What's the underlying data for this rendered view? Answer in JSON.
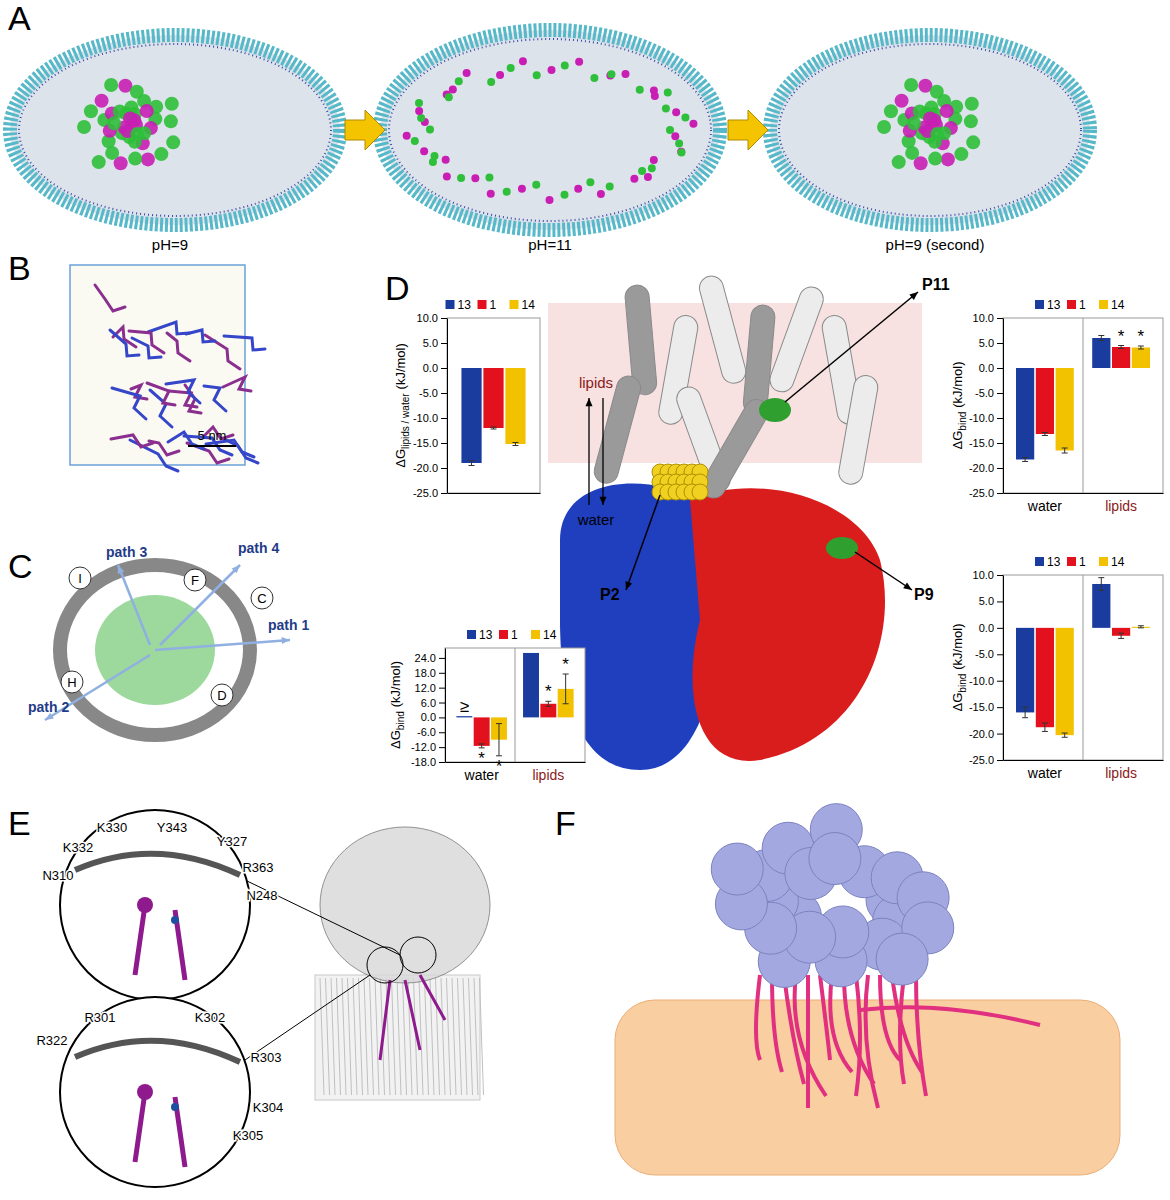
{
  "panel_labels": [
    "A",
    "B",
    "C",
    "D",
    "E",
    "F"
  ],
  "panel_a": {
    "captions": [
      "pH=9",
      "pH=11",
      "pH=9 (second)"
    ]
  },
  "panel_b": {
    "scale_bar": "5 nm"
  },
  "panel_c": {
    "paths": [
      "path 1",
      "path 2",
      "path 3",
      "path 4"
    ],
    "helices": [
      "I",
      "F",
      "C",
      "H",
      "D"
    ]
  },
  "panel_d": {
    "regions": [
      "lipids",
      "water"
    ]
  },
  "panel_e": {
    "upper_inset_residues": [
      "K330",
      "Y343",
      "Y327",
      "K332",
      "R363",
      "N310",
      "N248"
    ],
    "lower_inset_residues": [
      "R301",
      "K302",
      "R322",
      "R303",
      "K304",
      "K305"
    ]
  },
  "chart_data": [
    {
      "type": "bar",
      "categories": [
        null
      ],
      "y_label": {
        "symbol": "ΔG",
        "subscript": "lipids / water",
        "unit": "(kJ/mol)"
      },
      "series": [
        {
          "name": "13",
          "color": "#1a3c9e",
          "values": [
            -19.0
          ],
          "errors": [
            0.5
          ]
        },
        {
          "name": "1",
          "color": "#e3101e",
          "values": [
            -12.0
          ],
          "errors": [
            0.2
          ]
        },
        {
          "name": "14",
          "color": "#f2c200",
          "values": [
            -15.2
          ],
          "errors": [
            0.3
          ]
        }
      ],
      "ylim": [
        -25,
        10
      ],
      "yticks": [
        {
          "value": -25,
          "label": "-25.0"
        },
        {
          "value": -20,
          "label": "-20.0"
        },
        {
          "value": -15,
          "label": "-15.0"
        },
        {
          "value": -10,
          "label": "-10.0"
        },
        {
          "value": -5,
          "label": "-5.0"
        },
        {
          "value": 0,
          "label": "0.0"
        },
        {
          "value": 5,
          "label": "5.0"
        },
        {
          "value": 10,
          "label": "10.0"
        }
      ],
      "legend": "top"
    },
    {
      "type": "bar",
      "title": "P11",
      "categories": [
        "water",
        "lipids"
      ],
      "y_label": {
        "symbol": "ΔG",
        "subscript": "bind",
        "unit": "(kJ/mol)"
      },
      "series": [
        {
          "name": "13",
          "color": "#1a3c9e",
          "values": [
            -18.3,
            6.0
          ],
          "errors": [
            0.4,
            0.5
          ]
        },
        {
          "name": "1",
          "color": "#e3101e",
          "values": [
            -13.2,
            4.2
          ],
          "errors": [
            0.3,
            0.3
          ],
          "annotations": [
            null,
            "*"
          ]
        },
        {
          "name": "14",
          "color": "#f2c200",
          "values": [
            -16.5,
            4.1
          ],
          "errors": [
            0.5,
            0.3
          ],
          "annotations": [
            null,
            "*"
          ]
        }
      ],
      "ylim": [
        -25,
        10
      ],
      "yticks": [
        {
          "value": -25,
          "label": "-25.0"
        },
        {
          "value": -20,
          "label": "-20.0"
        },
        {
          "value": -15,
          "label": "-15.0"
        },
        {
          "value": -10,
          "label": "-10.0"
        },
        {
          "value": -5,
          "label": "-5.0"
        },
        {
          "value": 0,
          "label": "0.0"
        },
        {
          "value": 5,
          "label": "5.0"
        },
        {
          "value": 10,
          "label": "10.0"
        }
      ],
      "legend": "top"
    },
    {
      "type": "bar",
      "title": "P9",
      "categories": [
        "water",
        "lipids"
      ],
      "y_label": {
        "symbol": "ΔG",
        "subscript": "bind",
        "unit": "(kJ/mol)"
      },
      "series": [
        {
          "name": "13",
          "color": "#1a3c9e",
          "values": [
            -16.0,
            8.3
          ],
          "errors": [
            1.0,
            1.2
          ]
        },
        {
          "name": "1",
          "color": "#e3101e",
          "values": [
            -18.8,
            -1.5
          ],
          "errors": [
            0.8,
            0.5
          ]
        },
        {
          "name": "14",
          "color": "#f2c200",
          "values": [
            -20.3,
            0.2
          ],
          "errors": [
            0.4,
            0.2
          ]
        }
      ],
      "ylim": [
        -25,
        10
      ],
      "yticks": [
        {
          "value": -25,
          "label": "-25.0"
        },
        {
          "value": -20,
          "label": "-20.0"
        },
        {
          "value": -15,
          "label": "-15.0"
        },
        {
          "value": -10,
          "label": "-10.0"
        },
        {
          "value": -5,
          "label": "-5.0"
        },
        {
          "value": 0,
          "label": "0.0"
        },
        {
          "value": 5,
          "label": "5.0"
        },
        {
          "value": 10,
          "label": "10.0"
        }
      ],
      "legend": "top"
    },
    {
      "type": "bar",
      "title": "P2",
      "categories": [
        "water",
        "lipids"
      ],
      "y_label": {
        "symbol": "ΔG",
        "subscript": "bind",
        "unit": "(kJ/mol)"
      },
      "series": [
        {
          "name": "13",
          "color": "#1a3c9e",
          "values": [
            0.5,
            26.0
          ],
          "errors": [
            null,
            null
          ],
          "annotations": [
            "≥",
            null
          ]
        },
        {
          "name": "1",
          "color": "#e3101e",
          "values": [
            -11.5,
            5.5
          ],
          "errors": [
            0.8,
            1.0
          ],
          "annotations": [
            "*",
            "*"
          ]
        },
        {
          "name": "14",
          "color": "#f2c200",
          "values": [
            -9.0,
            11.5
          ],
          "errors": [
            6.5,
            6.0
          ],
          "annotations": [
            "*",
            "*"
          ]
        }
      ],
      "ylim": [
        -18,
        28
      ],
      "yticks": [
        {
          "value": -18,
          "label": "-18.0"
        },
        {
          "value": -12,
          "label": "-12.0"
        },
        {
          "value": -6,
          "label": "-6.0"
        },
        {
          "value": 0,
          "label": "0.0"
        },
        {
          "value": 6,
          "label": "6.0"
        },
        {
          "value": 12,
          "label": "12.0"
        },
        {
          "value": 18,
          "label": "18.0"
        },
        {
          "value": 24,
          "label": "24.0"
        }
      ],
      "legend": "top"
    }
  ]
}
